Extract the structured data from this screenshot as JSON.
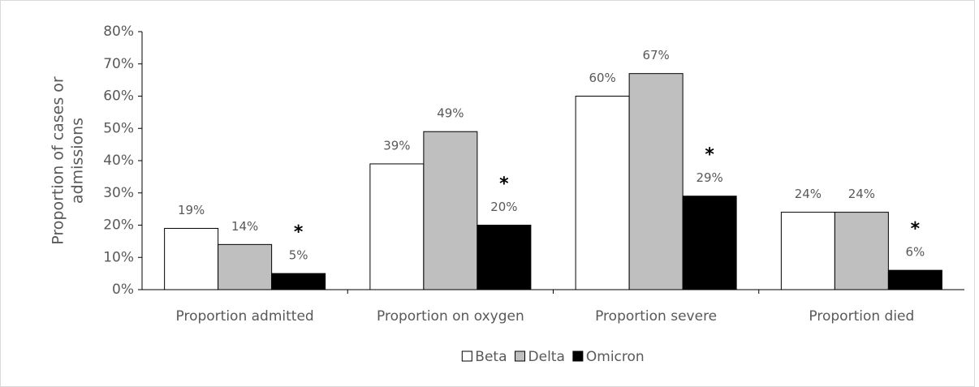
{
  "chart_data": {
    "type": "bar",
    "ylabel": [
      "Proportion of cases or",
      "admissions"
    ],
    "categories": [
      "Proportion admitted",
      "Proportion on oxygen",
      "Proportion severe",
      "Proportion died"
    ],
    "series": [
      {
        "name": "Beta",
        "color": "#ffffff",
        "values": [
          19,
          39,
          60,
          24
        ],
        "value_labels": [
          "19%",
          "39%",
          "60%",
          "24%"
        ]
      },
      {
        "name": "Delta",
        "color": "#bfbfbf",
        "values": [
          14,
          49,
          67,
          24
        ],
        "value_labels": [
          "14%",
          "49%",
          "67%",
          "24%"
        ]
      },
      {
        "name": "Omicron",
        "color": "#000000",
        "values": [
          5,
          20,
          29,
          6
        ],
        "value_labels": [
          "5%",
          "20%",
          "29%",
          "6%"
        ],
        "annotations": [
          "*",
          "*",
          "*",
          "*"
        ]
      }
    ],
    "ylim": [
      0,
      80
    ],
    "yticks": [
      {
        "value": 0,
        "label": "0%"
      },
      {
        "value": 10,
        "label": "10%"
      },
      {
        "value": 20,
        "label": "20%"
      },
      {
        "value": 30,
        "label": "30%"
      },
      {
        "value": 40,
        "label": "40%"
      },
      {
        "value": 50,
        "label": "50%"
      },
      {
        "value": 60,
        "label": "60%"
      },
      {
        "value": 70,
        "label": "70%"
      },
      {
        "value": 80,
        "label": "80%"
      }
    ],
    "legend": "bottom"
  }
}
